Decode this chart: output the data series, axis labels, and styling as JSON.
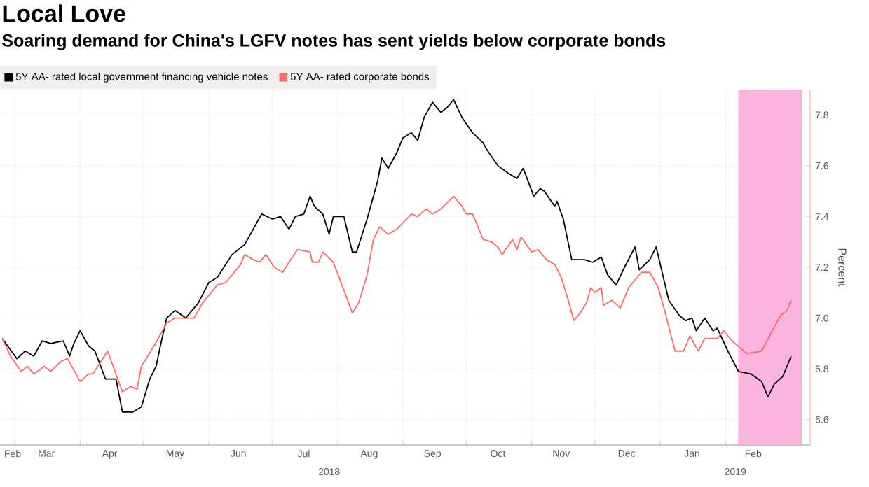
{
  "chart_data": {
    "type": "line",
    "title": "Local Love",
    "subtitle": "Soaring demand for China's LGFV notes has sent yields below corporate bonds",
    "ylabel": "Percent",
    "series": [
      {
        "name": "5Y AA- rated local government financing vehicle notes",
        "color": "#000000",
        "x": [
          "2018-02-23",
          "2018-03-02",
          "2018-03-06",
          "2018-03-10",
          "2018-03-14",
          "2018-03-18",
          "2018-03-24",
          "2018-03-27",
          "2018-03-29",
          "2018-04-01",
          "2018-04-05",
          "2018-04-08",
          "2018-04-13",
          "2018-04-18",
          "2018-04-21",
          "2018-04-26",
          "2018-04-30",
          "2018-05-04",
          "2018-05-07",
          "2018-05-09",
          "2018-05-12",
          "2018-05-16",
          "2018-05-21",
          "2018-05-23",
          "2018-05-27",
          "2018-06-01",
          "2018-06-05",
          "2018-06-12",
          "2018-06-15",
          "2018-06-18",
          "2018-06-22",
          "2018-06-26",
          "2018-07-01",
          "2018-07-05",
          "2018-07-09",
          "2018-07-12",
          "2018-07-16",
          "2018-07-19",
          "2018-07-21",
          "2018-07-25",
          "2018-07-28",
          "2018-07-30",
          "2018-08-04",
          "2018-08-08",
          "2018-08-10",
          "2018-08-15",
          "2018-08-20",
          "2018-08-22",
          "2018-08-25",
          "2018-08-29",
          "2018-09-01",
          "2018-09-05",
          "2018-09-08",
          "2018-09-11",
          "2018-09-15",
          "2018-09-19",
          "2018-09-22",
          "2018-09-25",
          "2018-09-29",
          "2018-10-04",
          "2018-10-09",
          "2018-10-11",
          "2018-10-16",
          "2018-10-21",
          "2018-10-25",
          "2018-10-28",
          "2018-11-02",
          "2018-11-05",
          "2018-11-07",
          "2018-11-12",
          "2018-11-13",
          "2018-11-16",
          "2018-11-20",
          "2018-11-26",
          "2018-11-30",
          "2018-12-04",
          "2018-12-07",
          "2018-12-11",
          "2018-12-15",
          "2018-12-20",
          "2018-12-22",
          "2018-12-27",
          "2018-12-30",
          "2019-01-05",
          "2019-01-10",
          "2019-01-13",
          "2019-01-16",
          "2019-01-18",
          "2019-01-22",
          "2019-01-26",
          "2019-01-28",
          "2019-02-02",
          "2019-02-07",
          "2019-02-13",
          "2019-02-18",
          "2019-02-21",
          "2019-02-24",
          "2019-02-28",
          "2019-03-04"
        ],
        "values": [
          6.92,
          6.84,
          6.87,
          6.85,
          6.91,
          6.9,
          6.91,
          6.85,
          6.9,
          6.95,
          6.89,
          6.87,
          6.76,
          6.76,
          6.63,
          6.63,
          6.65,
          6.76,
          6.81,
          6.89,
          7.0,
          7.03,
          7.0,
          7.02,
          7.06,
          7.14,
          7.16,
          7.25,
          7.27,
          7.29,
          7.35,
          7.41,
          7.39,
          7.4,
          7.35,
          7.4,
          7.41,
          7.48,
          7.44,
          7.41,
          7.33,
          7.4,
          7.4,
          7.26,
          7.26,
          7.39,
          7.54,
          7.63,
          7.59,
          7.65,
          7.71,
          7.73,
          7.7,
          7.79,
          7.85,
          7.81,
          7.83,
          7.86,
          7.79,
          7.73,
          7.69,
          7.66,
          7.6,
          7.57,
          7.55,
          7.59,
          7.48,
          7.51,
          7.5,
          7.44,
          7.46,
          7.39,
          7.23,
          7.23,
          7.22,
          7.24,
          7.17,
          7.13,
          7.2,
          7.28,
          7.19,
          7.23,
          7.28,
          7.07,
          7.01,
          6.99,
          7.0,
          6.95,
          7.0,
          6.95,
          6.96,
          6.87,
          6.79,
          6.78,
          6.75,
          6.69,
          6.74,
          6.77,
          6.85
        ]
      },
      {
        "name": "5Y AA- rated corporate bonds",
        "color": "#ff6b6b",
        "x": [
          "2018-02-23",
          "2018-02-27",
          "2018-03-04",
          "2018-03-07",
          "2018-03-10",
          "2018-03-15",
          "2018-03-18",
          "2018-03-23",
          "2018-03-26",
          "2018-03-28",
          "2018-04-01",
          "2018-04-05",
          "2018-04-07",
          "2018-04-14",
          "2018-04-21",
          "2018-04-25",
          "2018-04-28",
          "2018-04-30",
          "2018-05-06",
          "2018-05-12",
          "2018-05-16",
          "2018-05-25",
          "2018-05-29",
          "2018-06-05",
          "2018-06-09",
          "2018-06-12",
          "2018-06-16",
          "2018-06-18",
          "2018-06-22",
          "2018-06-25",
          "2018-06-28",
          "2018-07-02",
          "2018-07-06",
          "2018-07-09",
          "2018-07-13",
          "2018-07-19",
          "2018-07-20",
          "2018-07-23",
          "2018-07-25",
          "2018-07-30",
          "2018-08-04",
          "2018-08-08",
          "2018-08-11",
          "2018-08-15",
          "2018-08-18",
          "2018-08-21",
          "2018-08-25",
          "2018-08-29",
          "2018-09-05",
          "2018-09-08",
          "2018-09-12",
          "2018-09-15",
          "2018-09-19",
          "2018-09-25",
          "2018-09-29",
          "2018-10-01",
          "2018-10-04",
          "2018-10-09",
          "2018-10-13",
          "2018-10-16",
          "2018-10-18",
          "2018-10-23",
          "2018-10-25",
          "2018-10-27",
          "2018-11-01",
          "2018-11-04",
          "2018-11-08",
          "2018-11-12",
          "2018-11-15",
          "2018-11-18",
          "2018-11-21",
          "2018-11-24",
          "2018-11-27",
          "2018-11-29",
          "2018-12-01",
          "2018-12-04",
          "2018-12-05",
          "2018-12-09",
          "2018-12-13",
          "2018-12-17",
          "2018-12-23",
          "2018-12-27",
          "2018-12-31",
          "2019-01-03",
          "2019-01-08",
          "2019-01-12",
          "2019-01-15",
          "2019-01-19",
          "2019-01-22",
          "2019-01-28",
          "2019-01-31",
          "2019-02-04",
          "2019-02-11",
          "2019-02-18",
          "2019-02-23",
          "2019-02-27",
          "2019-03-02",
          "2019-03-04"
        ],
        "values": [
          6.92,
          6.85,
          6.79,
          6.81,
          6.78,
          6.81,
          6.79,
          6.83,
          6.84,
          6.81,
          6.75,
          6.78,
          6.78,
          6.87,
          6.71,
          6.73,
          6.72,
          6.81,
          6.89,
          6.98,
          7.0,
          7.0,
          7.06,
          7.13,
          7.14,
          7.17,
          7.21,
          7.25,
          7.23,
          7.22,
          7.25,
          7.2,
          7.18,
          7.22,
          7.27,
          7.26,
          7.22,
          7.22,
          7.26,
          7.22,
          7.11,
          7.02,
          7.06,
          7.17,
          7.31,
          7.36,
          7.33,
          7.35,
          7.41,
          7.4,
          7.43,
          7.41,
          7.43,
          7.48,
          7.44,
          7.41,
          7.41,
          7.31,
          7.3,
          7.28,
          7.25,
          7.31,
          7.27,
          7.32,
          7.26,
          7.27,
          7.23,
          7.21,
          7.16,
          7.08,
          6.99,
          7.02,
          7.06,
          7.12,
          7.1,
          7.12,
          7.05,
          7.07,
          7.04,
          7.12,
          7.18,
          7.18,
          7.12,
          7.03,
          6.87,
          6.87,
          6.93,
          6.87,
          6.92,
          6.92,
          6.95,
          6.91,
          6.86,
          6.87,
          6.95,
          7.01,
          7.03,
          7.07
        ]
      }
    ],
    "xlim": [
      "2018-02-22",
      "2019-03-13"
    ],
    "xticks": [
      {
        "value": "2018-03-01",
        "label": null
      },
      {
        "value": "2018-04-01",
        "label": null
      },
      {
        "value": "2018-05-01",
        "label": null
      },
      {
        "value": "2018-06-01",
        "label": null
      },
      {
        "value": "2018-07-01",
        "label": null
      },
      {
        "value": "2018-08-01",
        "label": null
      },
      {
        "value": "2018-09-01",
        "label": null
      },
      {
        "value": "2018-10-01",
        "label": null
      },
      {
        "value": "2018-11-01",
        "label": null
      },
      {
        "value": "2018-12-01",
        "label": null
      },
      {
        "value": "2019-01-01",
        "label": null
      },
      {
        "value": "2019-02-01",
        "label": null
      },
      {
        "value": "2019-03-01",
        "label": null
      },
      {
        "value": "2018-02-28",
        "label": "Feb"
      },
      {
        "value": "2018-03-16",
        "label": "Mar"
      },
      {
        "value": "2018-04-15",
        "label": "Apr"
      },
      {
        "value": "2018-05-16",
        "label": "May"
      },
      {
        "value": "2018-06-15",
        "label": "Jun"
      },
      {
        "value": "2018-07-16",
        "label": "Jul"
      },
      {
        "value": "2018-08-16",
        "label": "Aug"
      },
      {
        "value": "2018-09-15",
        "label": "Sep"
      },
      {
        "value": "2018-10-16",
        "label": "Oct"
      },
      {
        "value": "2018-11-15",
        "label": "Nov"
      },
      {
        "value": "2018-12-16",
        "label": "Dec"
      },
      {
        "value": "2019-01-16",
        "label": "Jan"
      },
      {
        "value": "2019-02-14",
        "label": "Feb"
      }
    ],
    "ylim": [
      6.5,
      7.9
    ],
    "yticks": [
      {
        "value": 6.6,
        "label": "6.6"
      },
      {
        "value": 6.8,
        "label": "6.8"
      },
      {
        "value": 7.0,
        "label": "7.0"
      },
      {
        "value": 7.2,
        "label": "7.2"
      },
      {
        "value": 7.4,
        "label": "7.4"
      },
      {
        "value": 7.6,
        "label": "7.6"
      },
      {
        "value": 7.8,
        "label": "7.8"
      }
    ],
    "annotations": [
      "2018",
      "2019"
    ],
    "bands": [
      {
        "axis": "x",
        "from": "2019-02-07",
        "to": "2019-03-09",
        "color": "#fbb4de"
      }
    ],
    "grid": true,
    "legend": "top left",
    "marker": "none",
    "line_style": "solid"
  }
}
